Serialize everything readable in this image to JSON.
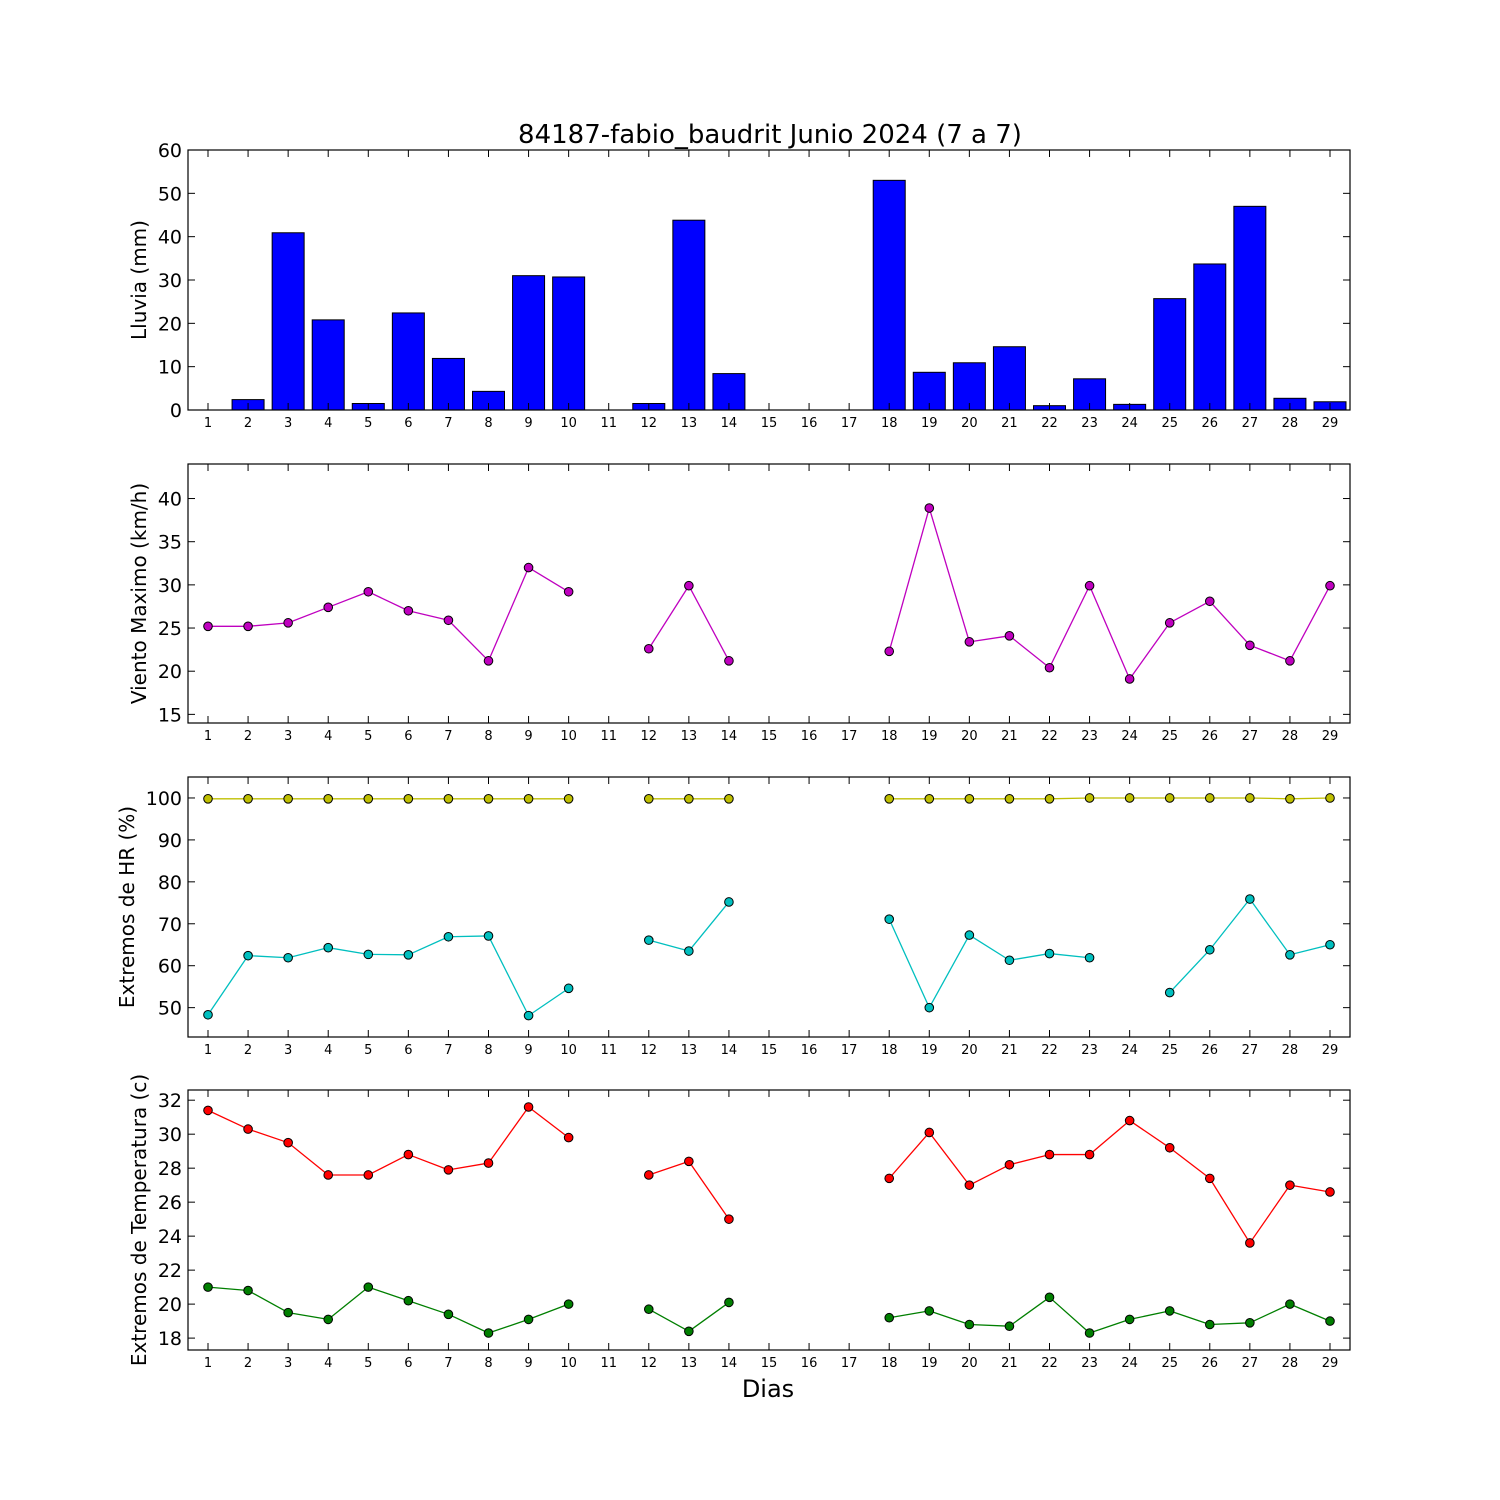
{
  "figure": {
    "title": "84187-fabio_baudrit Junio 2024  (7 a 7)",
    "xlabel": "Dias"
  },
  "chart_data": [
    {
      "type": "bar",
      "id": "rain",
      "ylabel": "Lluvia (mm)",
      "ylim": [
        0,
        60
      ],
      "yticks": [
        0,
        10,
        20,
        30,
        40,
        50,
        60
      ],
      "x": [
        1,
        2,
        3,
        4,
        5,
        6,
        7,
        8,
        9,
        10,
        11,
        12,
        13,
        14,
        15,
        16,
        17,
        18,
        19,
        20,
        21,
        22,
        23,
        24,
        25,
        26,
        27,
        28,
        29
      ],
      "series": [
        {
          "color": "#0000ff",
          "values": [
            0,
            2.4,
            40.9,
            20.8,
            1.5,
            22.4,
            11.9,
            4.3,
            31.0,
            30.7,
            0,
            1.5,
            43.8,
            8.4,
            0,
            0,
            0,
            53.0,
            8.7,
            10.9,
            14.6,
            1.0,
            7.2,
            1.3,
            25.7,
            33.7,
            47.0,
            2.7,
            1.9
          ]
        }
      ]
    },
    {
      "type": "line",
      "id": "wind",
      "ylabel": "Viento Maximo (km/h)",
      "ylim": [
        14,
        44
      ],
      "yticks": [
        15,
        20,
        25,
        30,
        35,
        40
      ],
      "x": [
        1,
        2,
        3,
        4,
        5,
        6,
        7,
        8,
        9,
        10,
        11,
        12,
        13,
        14,
        15,
        16,
        17,
        18,
        19,
        20,
        21,
        22,
        23,
        24,
        25,
        26,
        27,
        28,
        29
      ],
      "series": [
        {
          "color": "#bf00bf",
          "values": [
            25.2,
            25.2,
            25.6,
            27.4,
            29.2,
            27.0,
            25.9,
            21.2,
            32.0,
            29.2,
            null,
            22.6,
            29.9,
            21.2,
            null,
            null,
            null,
            22.3,
            38.9,
            23.4,
            24.1,
            20.4,
            29.9,
            19.1,
            25.6,
            28.1,
            23.0,
            21.2,
            29.9
          ]
        }
      ]
    },
    {
      "type": "line",
      "id": "humidity",
      "ylabel": "Extremos de HR (%)",
      "ylim": [
        43,
        105
      ],
      "yticks": [
        50,
        60,
        70,
        80,
        90,
        100
      ],
      "x": [
        1,
        2,
        3,
        4,
        5,
        6,
        7,
        8,
        9,
        10,
        11,
        12,
        13,
        14,
        15,
        16,
        17,
        18,
        19,
        20,
        21,
        22,
        23,
        24,
        25,
        26,
        27,
        28,
        29
      ],
      "series": [
        {
          "color": "#bfbf00",
          "values": [
            99.8,
            99.8,
            99.8,
            99.8,
            99.8,
            99.8,
            99.8,
            99.8,
            99.8,
            99.8,
            null,
            99.8,
            99.8,
            99.8,
            null,
            null,
            null,
            99.8,
            99.8,
            99.8,
            99.8,
            99.8,
            100,
            100,
            100,
            100,
            100,
            99.8,
            100
          ]
        },
        {
          "color": "#00bfbf",
          "values": [
            48.3,
            62.4,
            61.9,
            64.3,
            62.7,
            62.6,
            66.9,
            67.1,
            48.1,
            54.6,
            null,
            66.1,
            63.5,
            75.2,
            null,
            null,
            null,
            71.1,
            50.0,
            67.3,
            61.3,
            62.9,
            61.9,
            null,
            53.6,
            63.8,
            75.9,
            62.6,
            65.0
          ]
        }
      ]
    },
    {
      "type": "line",
      "id": "temperature",
      "ylabel": "Extremos de Temperatura (c)",
      "ylim": [
        17.3,
        32.6
      ],
      "yticks": [
        18,
        20,
        22,
        24,
        26,
        28,
        30,
        32
      ],
      "x": [
        1,
        2,
        3,
        4,
        5,
        6,
        7,
        8,
        9,
        10,
        11,
        12,
        13,
        14,
        15,
        16,
        17,
        18,
        19,
        20,
        21,
        22,
        23,
        24,
        25,
        26,
        27,
        28,
        29
      ],
      "series": [
        {
          "color": "#ff0000",
          "values": [
            31.4,
            30.3,
            29.5,
            27.6,
            27.6,
            28.8,
            27.9,
            28.3,
            31.6,
            29.8,
            null,
            27.6,
            28.4,
            25.0,
            null,
            null,
            null,
            27.4,
            30.1,
            27.0,
            28.2,
            28.8,
            28.8,
            30.8,
            29.2,
            27.4,
            23.6,
            27.0,
            26.6
          ]
        },
        {
          "color": "#007f00",
          "values": [
            21.0,
            20.8,
            19.5,
            19.1,
            21.0,
            20.2,
            19.4,
            18.3,
            19.1,
            20.0,
            null,
            19.7,
            18.4,
            20.1,
            null,
            null,
            null,
            19.2,
            19.6,
            18.8,
            18.7,
            20.4,
            18.3,
            19.1,
            19.6,
            18.8,
            18.9,
            20.0,
            19.0
          ]
        }
      ]
    }
  ]
}
